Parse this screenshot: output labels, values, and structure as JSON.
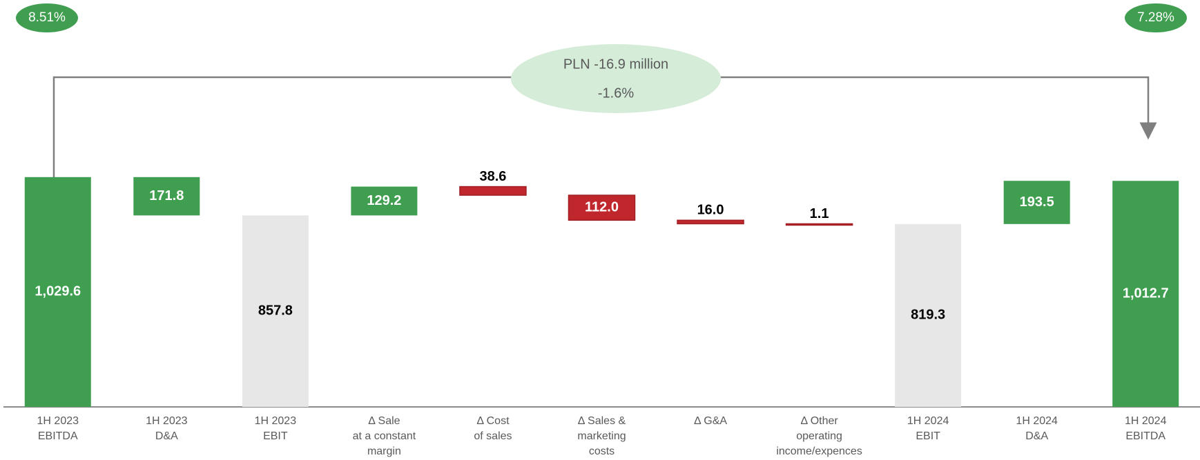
{
  "chart_data": {
    "type": "waterfall",
    "categories": [
      "1H 2023\nEBITDA",
      "1H 2023\nD&A",
      "1H 2023\nEBIT",
      "Δ Sale\nat a constant\nmargin",
      "Δ Cost\nof sales",
      "Δ Sales &\nmarketing\ncosts",
      "Δ G&A",
      "Δ Other\noperating\nincome/expences",
      "1H 2024\nEBIT",
      "1H 2024\nD&A",
      "1H 2024\nEBITDA"
    ],
    "measure": [
      "total",
      "relative",
      "total",
      "relative",
      "relative",
      "relative",
      "relative",
      "relative",
      "total",
      "relative",
      "total"
    ],
    "values": [
      1029.6,
      -171.8,
      857.8,
      129.2,
      -38.6,
      -112.0,
      -16.0,
      -1.1,
      819.3,
      193.5,
      1012.7
    ],
    "value_labels": [
      "1,029.6",
      "171.8",
      "857.8",
      "129.2",
      "38.6",
      "112.0",
      "16.0",
      "1.1",
      "819.3",
      "193.5",
      "1,012.7"
    ],
    "colors": [
      "#3f9e4f",
      "#3f9e4f",
      "#e7e7e7",
      "#3f9e4f",
      "#c0272d",
      "#c0272d",
      "#c0272d",
      "#c0272d",
      "#e7e7e7",
      "#3f9e4f",
      "#3f9e4f"
    ],
    "ylim": [
      0,
      1100
    ],
    "annotations": {
      "start_margin": "8.51%",
      "end_margin": "7.28%",
      "change_amount": "PLN -16.9 million",
      "change_percent": "-1.6%"
    }
  }
}
